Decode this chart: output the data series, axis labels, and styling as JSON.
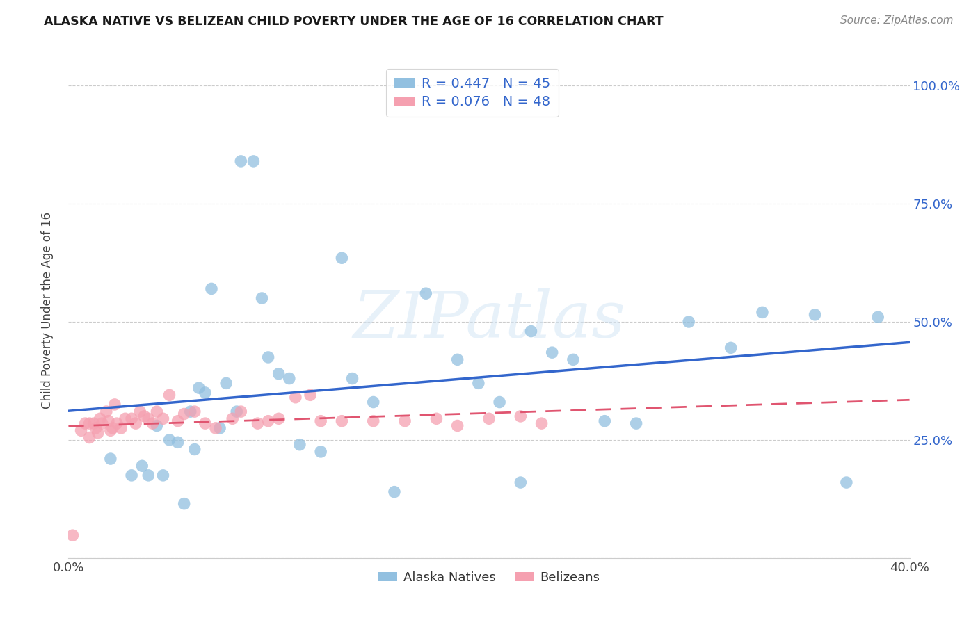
{
  "title": "ALASKA NATIVE VS BELIZEAN CHILD POVERTY UNDER THE AGE OF 16 CORRELATION CHART",
  "source": "Source: ZipAtlas.com",
  "ylabel": "Child Poverty Under the Age of 16",
  "xlim": [
    0.0,
    0.4
  ],
  "ylim": [
    0.0,
    1.05
  ],
  "yticks": [
    0.0,
    0.25,
    0.5,
    0.75,
    1.0
  ],
  "ytick_labels": [
    "",
    "25.0%",
    "50.0%",
    "75.0%",
    "100.0%"
  ],
  "xticks": [
    0.0,
    0.1,
    0.2,
    0.3,
    0.4
  ],
  "xtick_labels": [
    "0.0%",
    "",
    "",
    "",
    "40.0%"
  ],
  "alaska_R": 0.447,
  "alaska_N": 45,
  "belizean_R": 0.076,
  "belizean_N": 48,
  "alaska_color": "#92c0e0",
  "belizean_color": "#f5a0b0",
  "alaska_line_color": "#3366cc",
  "belizean_line_color": "#e05570",
  "background_color": "#ffffff",
  "grid_color": "#cccccc",
  "watermark_text": "ZIPatlas",
  "alaska_x": [
    0.02,
    0.03,
    0.035,
    0.038,
    0.042,
    0.045,
    0.048,
    0.052,
    0.055,
    0.058,
    0.06,
    0.062,
    0.065,
    0.068,
    0.072,
    0.075,
    0.08,
    0.082,
    0.088,
    0.092,
    0.095,
    0.1,
    0.105,
    0.11,
    0.12,
    0.13,
    0.135,
    0.145,
    0.155,
    0.17,
    0.185,
    0.195,
    0.205,
    0.215,
    0.22,
    0.23,
    0.24,
    0.255,
    0.27,
    0.295,
    0.315,
    0.33,
    0.355,
    0.37,
    0.385
  ],
  "alaska_y": [
    0.21,
    0.175,
    0.195,
    0.175,
    0.28,
    0.175,
    0.25,
    0.245,
    0.115,
    0.31,
    0.23,
    0.36,
    0.35,
    0.57,
    0.275,
    0.37,
    0.31,
    0.84,
    0.84,
    0.55,
    0.425,
    0.39,
    0.38,
    0.24,
    0.225,
    0.635,
    0.38,
    0.33,
    0.14,
    0.56,
    0.42,
    0.37,
    0.33,
    0.16,
    0.48,
    0.435,
    0.42,
    0.29,
    0.285,
    0.5,
    0.445,
    0.52,
    0.515,
    0.16,
    0.51
  ],
  "belizean_x": [
    0.002,
    0.006,
    0.008,
    0.01,
    0.01,
    0.012,
    0.013,
    0.014,
    0.015,
    0.016,
    0.018,
    0.019,
    0.02,
    0.021,
    0.022,
    0.023,
    0.025,
    0.027,
    0.03,
    0.032,
    0.034,
    0.036,
    0.038,
    0.04,
    0.042,
    0.045,
    0.048,
    0.052,
    0.055,
    0.06,
    0.065,
    0.07,
    0.078,
    0.082,
    0.09,
    0.095,
    0.1,
    0.108,
    0.115,
    0.12,
    0.13,
    0.145,
    0.16,
    0.175,
    0.185,
    0.2,
    0.215,
    0.225
  ],
  "belizean_y": [
    0.048,
    0.27,
    0.285,
    0.285,
    0.255,
    0.285,
    0.275,
    0.265,
    0.295,
    0.285,
    0.31,
    0.29,
    0.27,
    0.275,
    0.325,
    0.285,
    0.275,
    0.295,
    0.295,
    0.285,
    0.31,
    0.3,
    0.295,
    0.285,
    0.31,
    0.295,
    0.345,
    0.29,
    0.305,
    0.31,
    0.285,
    0.275,
    0.295,
    0.31,
    0.285,
    0.29,
    0.295,
    0.34,
    0.345,
    0.29,
    0.29,
    0.29,
    0.29,
    0.295,
    0.28,
    0.295,
    0.3,
    0.285
  ]
}
